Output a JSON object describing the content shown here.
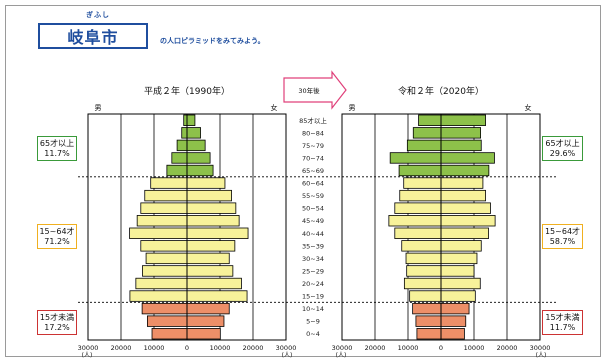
{
  "header": {
    "ruby": "ぎふし",
    "city": "岐阜市",
    "intro": "の人口ピラミッドをみてみよう。"
  },
  "arrow_label": "30年後",
  "age_groups": [
    "85才以上",
    "80~84",
    "75~79",
    "70~74",
    "65~69",
    "60~64",
    "55~59",
    "50~54",
    "45~49",
    "40~44",
    "35~39",
    "30~34",
    "25~29",
    "20~24",
    "15~19",
    "10~14",
    "5~9",
    "0~4"
  ],
  "colors": {
    "elderly": "#8dc14a",
    "working": "#f7f29a",
    "young": "#ed8f68",
    "badge_elderly": "#3a9a3a",
    "badge_working": "#f0b020",
    "badge_young": "#cc3333"
  },
  "chart_data": [
    {
      "type": "bar",
      "title": "平成２年（1990年）",
      "male_label": "男",
      "female_label": "女",
      "x_ticks": [
        "30000",
        "20000",
        "10000",
        "0",
        "10000",
        "20000",
        "30000"
      ],
      "x_unit": "(人)",
      "xlim": [
        -30000,
        30000
      ],
      "categories": [
        "85才以上",
        "80~84",
        "75~79",
        "70~74",
        "65~69",
        "60~64",
        "55~59",
        "50~54",
        "45~49",
        "40~44",
        "35~39",
        "30~34",
        "25~29",
        "20~24",
        "15~19",
        "10~14",
        "5~9",
        "0~4"
      ],
      "series": [
        {
          "name": "男",
          "values": [
            1000,
            1600,
            3000,
            4600,
            6100,
            11000,
            12800,
            14000,
            15100,
            17400,
            14000,
            12400,
            13500,
            15500,
            17300,
            13600,
            12000,
            10600
          ]
        },
        {
          "name": "女",
          "values": [
            2400,
            4100,
            5500,
            7000,
            7900,
            11500,
            13500,
            14800,
            15800,
            18500,
            14500,
            12800,
            13900,
            16500,
            18200,
            12800,
            11200,
            10100
          ]
        }
      ],
      "groups": [
        {
          "label": "65才以上",
          "percent": "11.7%"
        },
        {
          "label": "15~64才",
          "percent": "71.2%"
        },
        {
          "label": "15才未満",
          "percent": "17.2%"
        }
      ]
    },
    {
      "type": "bar",
      "title": "令和２年（2020年）",
      "male_label": "男",
      "female_label": "女",
      "x_ticks": [
        "30000",
        "20000",
        "10000",
        "0",
        "10000",
        "20000",
        "30000"
      ],
      "x_unit": "(人)",
      "xlim": [
        -30000,
        30000
      ],
      "categories": [
        "85才以上",
        "80~84",
        "75~79",
        "70~74",
        "65~69",
        "60~64",
        "55~59",
        "50~54",
        "45~49",
        "40~44",
        "35~39",
        "30~34",
        "25~29",
        "20~24",
        "15~19",
        "10~14",
        "5~9",
        "0~4"
      ],
      "series": [
        {
          "name": "男",
          "values": [
            6800,
            8400,
            10200,
            15400,
            12700,
            11300,
            12500,
            14000,
            15800,
            14000,
            11900,
            10600,
            10400,
            11100,
            9500,
            8600,
            7600,
            7300
          ]
        },
        {
          "name": "女",
          "values": [
            13500,
            12000,
            12200,
            16200,
            14500,
            12700,
            13500,
            15000,
            16400,
            14400,
            12200,
            10900,
            10000,
            11900,
            10400,
            8500,
            7500,
            7100
          ]
        }
      ],
      "groups": [
        {
          "label": "65才以上",
          "percent": "29.6%"
        },
        {
          "label": "15~64才",
          "percent": "58.7%"
        },
        {
          "label": "15才未満",
          "percent": "11.7%"
        }
      ]
    }
  ]
}
